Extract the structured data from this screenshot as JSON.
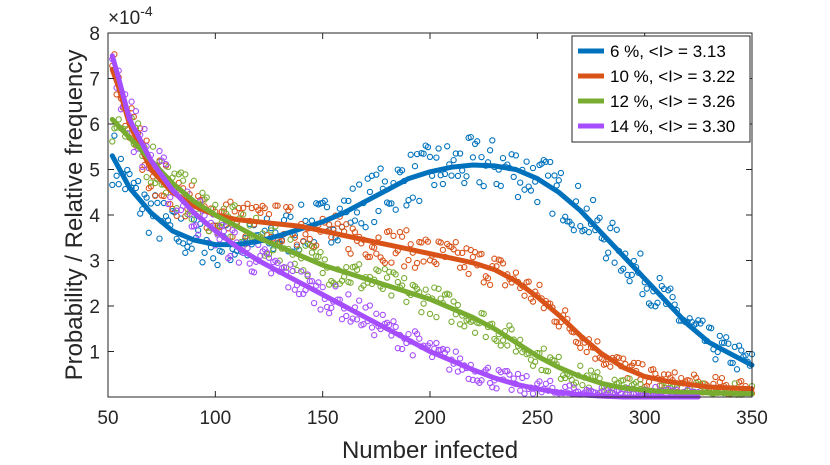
{
  "chart_data": {
    "type": "scatter",
    "title": "",
    "xlabel": "Number infected",
    "ylabel": "Probability / Relative frequency",
    "y_exponent_base": "×10",
    "y_exponent_power": "-4",
    "xlim": [
      50,
      350
    ],
    "ylim": [
      0,
      8
    ],
    "xticks": [
      50,
      100,
      150,
      200,
      250,
      300,
      350
    ],
    "yticks": [
      1,
      2,
      3,
      4,
      5,
      6,
      7,
      8
    ],
    "grid": false,
    "legend_position": "top-right",
    "series": [
      {
        "name": "6 %, <I> = 3.13",
        "color": "#0072BD",
        "fit_curve": [
          [
            52,
            5.3
          ],
          [
            60,
            4.6
          ],
          [
            70,
            4.05
          ],
          [
            80,
            3.65
          ],
          [
            90,
            3.45
          ],
          [
            100,
            3.35
          ],
          [
            110,
            3.35
          ],
          [
            120,
            3.42
          ],
          [
            130,
            3.55
          ],
          [
            140,
            3.7
          ],
          [
            150,
            3.85
          ],
          [
            160,
            4.05
          ],
          [
            170,
            4.3
          ],
          [
            180,
            4.55
          ],
          [
            190,
            4.8
          ],
          [
            200,
            4.95
          ],
          [
            210,
            5.05
          ],
          [
            220,
            5.1
          ],
          [
            230,
            5.08
          ],
          [
            240,
            5.0
          ],
          [
            250,
            4.8
          ],
          [
            260,
            4.5
          ],
          [
            270,
            4.1
          ],
          [
            280,
            3.6
          ],
          [
            290,
            3.1
          ],
          [
            300,
            2.6
          ],
          [
            310,
            2.1
          ],
          [
            320,
            1.6
          ],
          [
            330,
            1.2
          ],
          [
            340,
            0.95
          ],
          [
            350,
            0.7
          ]
        ]
      },
      {
        "name": "10 %, <I> = 3.22",
        "color": "#D95319",
        "fit_curve": [
          [
            52,
            7.2
          ],
          [
            55,
            6.8
          ],
          [
            60,
            6.0
          ],
          [
            70,
            5.0
          ],
          [
            80,
            4.5
          ],
          [
            90,
            4.2
          ],
          [
            100,
            4.0
          ],
          [
            110,
            3.9
          ],
          [
            120,
            3.85
          ],
          [
            130,
            3.8
          ],
          [
            140,
            3.75
          ],
          [
            150,
            3.65
          ],
          [
            160,
            3.55
          ],
          [
            170,
            3.45
          ],
          [
            180,
            3.35
          ],
          [
            190,
            3.25
          ],
          [
            200,
            3.15
          ],
          [
            210,
            3.05
          ],
          [
            220,
            2.95
          ],
          [
            230,
            2.8
          ],
          [
            240,
            2.55
          ],
          [
            250,
            2.2
          ],
          [
            260,
            1.8
          ],
          [
            270,
            1.35
          ],
          [
            280,
            0.95
          ],
          [
            290,
            0.65
          ],
          [
            300,
            0.45
          ],
          [
            310,
            0.35
          ],
          [
            320,
            0.28
          ],
          [
            330,
            0.22
          ],
          [
            340,
            0.2
          ],
          [
            350,
            0.18
          ]
        ]
      },
      {
        "name": "12 %, <I> = 3.26",
        "color": "#77AC30",
        "fit_curve": [
          [
            52,
            6.1
          ],
          [
            60,
            5.7
          ],
          [
            70,
            5.2
          ],
          [
            80,
            4.7
          ],
          [
            90,
            4.3
          ],
          [
            100,
            4.0
          ],
          [
            110,
            3.75
          ],
          [
            120,
            3.5
          ],
          [
            130,
            3.3
          ],
          [
            140,
            3.1
          ],
          [
            150,
            2.9
          ],
          [
            160,
            2.75
          ],
          [
            170,
            2.6
          ],
          [
            180,
            2.45
          ],
          [
            190,
            2.3
          ],
          [
            200,
            2.15
          ],
          [
            210,
            1.95
          ],
          [
            220,
            1.75
          ],
          [
            230,
            1.5
          ],
          [
            240,
            1.2
          ],
          [
            250,
            0.9
          ],
          [
            260,
            0.65
          ],
          [
            270,
            0.45
          ],
          [
            280,
            0.3
          ],
          [
            290,
            0.2
          ],
          [
            300,
            0.15
          ],
          [
            310,
            0.12
          ],
          [
            320,
            0.1
          ],
          [
            330,
            0.09
          ],
          [
            340,
            0.08
          ],
          [
            350,
            0.07
          ]
        ]
      },
      {
        "name": "14 %, <I> = 3.30",
        "color": "#A64DFF",
        "fit_curve": [
          [
            52,
            7.5
          ],
          [
            55,
            7.0
          ],
          [
            60,
            6.1
          ],
          [
            70,
            5.2
          ],
          [
            80,
            4.55
          ],
          [
            90,
            4.05
          ],
          [
            100,
            3.65
          ],
          [
            110,
            3.3
          ],
          [
            120,
            3.0
          ],
          [
            130,
            2.75
          ],
          [
            140,
            2.5
          ],
          [
            150,
            2.25
          ],
          [
            160,
            2.0
          ],
          [
            170,
            1.75
          ],
          [
            180,
            1.5
          ],
          [
            190,
            1.25
          ],
          [
            200,
            1.0
          ],
          [
            210,
            0.8
          ],
          [
            220,
            0.6
          ],
          [
            230,
            0.42
          ],
          [
            240,
            0.28
          ],
          [
            250,
            0.18
          ],
          [
            260,
            0.1
          ],
          [
            270,
            0.05
          ],
          [
            280,
            0.02
          ],
          [
            290,
            0.0
          ],
          [
            300,
            0.0
          ],
          [
            310,
            0.0
          ],
          [
            320,
            0.0
          ],
          [
            325,
            0.0
          ]
        ]
      }
    ]
  }
}
